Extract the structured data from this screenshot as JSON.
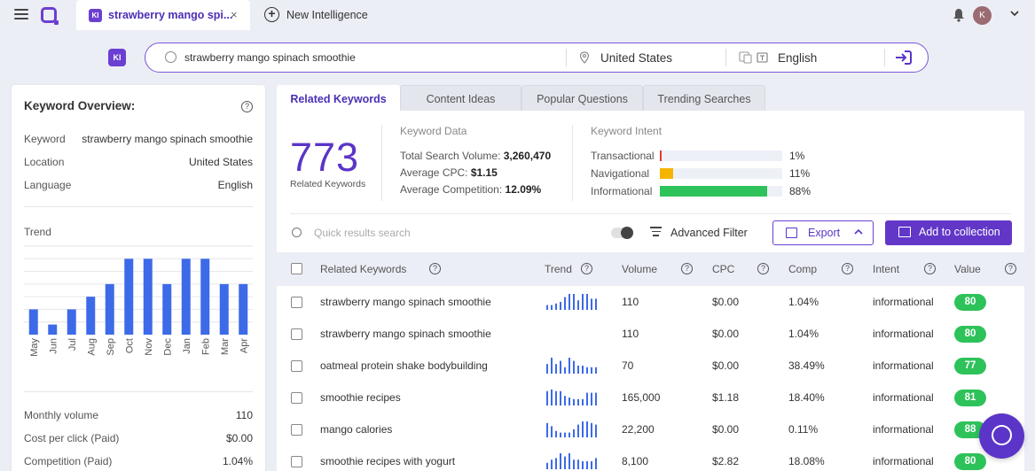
{
  "topbar": {
    "tab_badge": "KI",
    "tab_title": "strawberry mango spi...",
    "tab_close": "×",
    "new_tab_label": "New Intelligence",
    "avatar_letter": "K"
  },
  "search": {
    "badge": "KI",
    "keyword": "strawberry mango spinach smoothie",
    "location": "United States",
    "language": "English"
  },
  "overview": {
    "title": "Keyword Overview:",
    "rows": [
      {
        "key": "Keyword",
        "value": "strawberry mango spinach smoothie"
      },
      {
        "key": "Location",
        "value": "United States"
      },
      {
        "key": "Language",
        "value": "English"
      }
    ],
    "trend_label": "Trend",
    "metrics": [
      {
        "key": "Monthly volume",
        "value": "110"
      },
      {
        "key": "Cost per click (Paid)",
        "value": "$0.00"
      },
      {
        "key": "Competition (Paid)",
        "value": "1.04%"
      }
    ]
  },
  "chart_data": {
    "type": "bar",
    "categories": [
      "May",
      "Jun",
      "Jul",
      "Aug",
      "Sep",
      "Oct",
      "Nov",
      "Dec",
      "Jan",
      "Feb",
      "Mar",
      "Apr"
    ],
    "values": [
      0.5,
      0.2,
      0.5,
      0.75,
      1.0,
      1.5,
      1.5,
      1.0,
      1.5,
      1.5,
      1.0,
      1.0
    ],
    "ylim": [
      0,
      1.75
    ],
    "grid": true,
    "color": "#3d6ae8"
  },
  "tabs": [
    "Related Keywords",
    "Content Ideas",
    "Popular Questions",
    "Trending Searches"
  ],
  "summary": {
    "count": "773",
    "count_label": "Related Keywords",
    "data_title": "Keyword Data",
    "volume_label": "Total Search Volume:",
    "volume_value": "3,260,470",
    "cpc_label": "Average CPC:",
    "cpc_value": "$1.15",
    "comp_label": "Average Competition:",
    "comp_value": "12.09%",
    "intent_title": "Keyword Intent",
    "intents": [
      {
        "label": "Transactional",
        "pct": "1%",
        "fraction": 0.01,
        "color": "#e53935"
      },
      {
        "label": "Navigational",
        "pct": "11%",
        "fraction": 0.11,
        "color": "#f5b400"
      },
      {
        "label": "Informational",
        "pct": "88%",
        "fraction": 0.88,
        "color": "#2ec25a"
      }
    ]
  },
  "toolbar": {
    "search_placeholder": "Quick results search",
    "advanced_filter": "Advanced Filter",
    "export": "Export",
    "add_collection": "Add to collection"
  },
  "table": {
    "headers": [
      "Related Keywords",
      "Trend",
      "Volume",
      "CPC",
      "Comp",
      "Intent",
      "Value"
    ],
    "rows": [
      {
        "keyword": "strawberry mango spinach smoothie",
        "volume": "110",
        "cpc": "$0.00",
        "comp": "1.04%",
        "intent": "informational",
        "value": "80",
        "trend": [
          3,
          3,
          4,
          5,
          8,
          10,
          10,
          6,
          10,
          10,
          7,
          7
        ]
      },
      {
        "keyword": "strawberry mango spinach smoothie",
        "volume": "110",
        "cpc": "$0.00",
        "comp": "1.04%",
        "intent": "informational",
        "value": "80",
        "trend": []
      },
      {
        "keyword": "oatmeal protein shake bodybuilding",
        "volume": "70",
        "cpc": "$0.00",
        "comp": "38.49%",
        "intent": "informational",
        "value": "77",
        "trend": [
          6,
          10,
          6,
          8,
          4,
          10,
          8,
          5,
          5,
          4,
          4,
          4
        ]
      },
      {
        "keyword": "smoothie recipes",
        "volume": "165,000",
        "cpc": "$1.18",
        "comp": "18.40%",
        "intent": "informational",
        "value": "81",
        "trend": [
          9,
          10,
          9,
          9,
          6,
          5,
          4,
          4,
          4,
          8,
          8,
          8
        ]
      },
      {
        "keyword": "mango calories",
        "volume": "22,200",
        "cpc": "$0.00",
        "comp": "0.11%",
        "intent": "informational",
        "value": "88",
        "trend": [
          9,
          7,
          4,
          3,
          3,
          3,
          5,
          8,
          10,
          10,
          9,
          8
        ]
      },
      {
        "keyword": "smoothie recipes with yogurt",
        "volume": "8,100",
        "cpc": "$2.82",
        "comp": "18.08%",
        "intent": "informational",
        "value": "80",
        "trend": [
          4,
          6,
          7,
          10,
          8,
          10,
          6,
          6,
          5,
          5,
          5,
          7
        ]
      }
    ]
  }
}
